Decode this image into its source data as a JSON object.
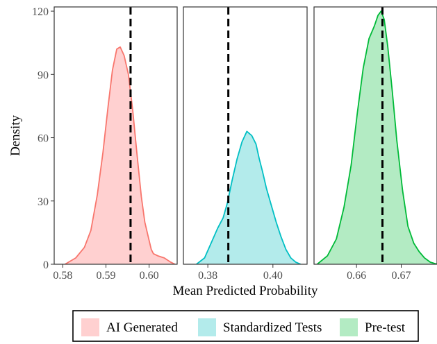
{
  "chart_data": {
    "type": "area",
    "title": "",
    "xlabel": "Mean Predicted Probability",
    "ylabel": "Density",
    "ylim": [
      0,
      122
    ],
    "yticks": [
      "0",
      "30",
      "60",
      "90",
      "120"
    ],
    "y_tick_values": [
      0,
      30,
      60,
      90,
      120
    ],
    "legend_position": "bottom",
    "panels": [
      {
        "name": "AI Generated",
        "color": "#f8766d",
        "fill": "#ffd0d0",
        "xlim": [
          0.578,
          0.6065
        ],
        "xticks": [
          "0.58",
          "0.59",
          "0.60"
        ],
        "x_tick_values": [
          0.58,
          0.59,
          0.6
        ],
        "reference_line": 0.5957,
        "x": [
          0.5805,
          0.583,
          0.585,
          0.5865,
          0.588,
          0.5893,
          0.5905,
          0.5915,
          0.5925,
          0.5933,
          0.5942,
          0.5952,
          0.5962,
          0.5972,
          0.5982,
          0.599,
          0.5998,
          0.6005,
          0.601,
          0.602,
          0.6035,
          0.605,
          0.606
        ],
        "y": [
          0,
          3,
          8,
          16,
          33,
          53,
          75,
          92,
          102,
          103,
          99,
          90,
          73,
          52,
          32,
          20,
          13,
          7,
          5,
          4,
          3,
          1,
          0
        ]
      },
      {
        "name": "Standardized Tests",
        "color": "#00bfc4",
        "fill": "#b3ebeb",
        "xlim": [
          0.3725,
          0.4105
        ],
        "xticks": [
          "0.38",
          "0.40"
        ],
        "x_tick_values": [
          0.38,
          0.4
        ],
        "reference_line": 0.3863,
        "x": [
          0.3765,
          0.379,
          0.381,
          0.383,
          0.3847,
          0.386,
          0.3875,
          0.389,
          0.3905,
          0.392,
          0.3935,
          0.3948,
          0.3958,
          0.3968,
          0.398,
          0.3995,
          0.401,
          0.4025,
          0.404,
          0.4055,
          0.407,
          0.4085
        ],
        "y": [
          0,
          3,
          10,
          17,
          22,
          29,
          40,
          50,
          58,
          63,
          61,
          57,
          50,
          44,
          36,
          28,
          20,
          13,
          7,
          3,
          1,
          0
        ]
      },
      {
        "name": "Pre-test",
        "color": "#00ba38",
        "fill": "#b3ebc3",
        "xlim": [
          0.6505,
          0.678
        ],
        "xticks": [
          "0.66",
          "0.67"
        ],
        "x_tick_values": [
          0.66,
          0.67
        ],
        "reference_line": 0.6658,
        "x": [
          0.6512,
          0.6535,
          0.6555,
          0.6572,
          0.6588,
          0.6602,
          0.6615,
          0.6628,
          0.664,
          0.6648,
          0.6655,
          0.6662,
          0.667,
          0.668,
          0.669,
          0.6703,
          0.6715,
          0.6728,
          0.674,
          0.6752,
          0.6765,
          0.678
        ],
        "y": [
          0,
          4,
          12,
          27,
          47,
          72,
          93,
          107,
          113,
          118,
          120,
          116,
          103,
          82,
          59,
          35,
          18,
          10,
          6,
          3,
          1,
          0
        ]
      }
    ],
    "legend": [
      "AI Generated",
      "Standardized Tests",
      "Pre-test"
    ]
  }
}
